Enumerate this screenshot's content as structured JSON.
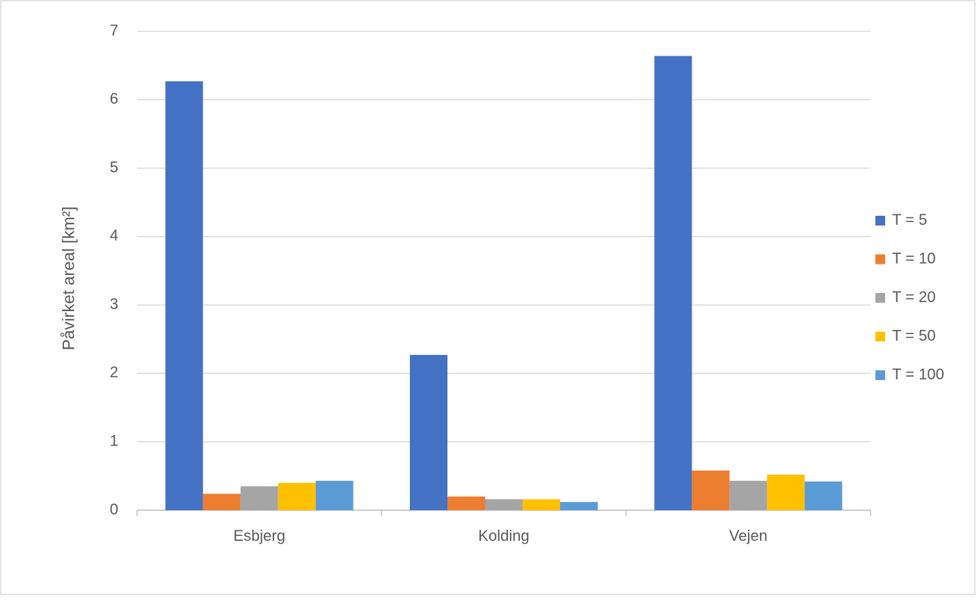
{
  "chart_data": {
    "type": "bar",
    "y_label": "Påvirket areal [km²]",
    "categories": [
      "Esbjerg",
      "Kolding",
      "Vejen"
    ],
    "series": [
      {
        "name": "T = 5",
        "color": "#4472c4",
        "values": [
          6.27,
          2.27,
          6.64
        ]
      },
      {
        "name": "T = 10",
        "color": "#ed7d31",
        "values": [
          0.24,
          0.2,
          0.58
        ]
      },
      {
        "name": "T = 20",
        "color": "#a5a5a5",
        "values": [
          0.35,
          0.16,
          0.43
        ]
      },
      {
        "name": "T = 50",
        "color": "#ffc000",
        "values": [
          0.4,
          0.16,
          0.52
        ]
      },
      {
        "name": "T = 100",
        "color": "#5b9bd5",
        "values": [
          0.43,
          0.12,
          0.42
        ]
      }
    ],
    "ylim": [
      0,
      7
    ],
    "yticks": [
      0,
      1,
      2,
      3,
      4,
      5,
      6,
      7
    ],
    "grid": true,
    "legend": "right"
  }
}
